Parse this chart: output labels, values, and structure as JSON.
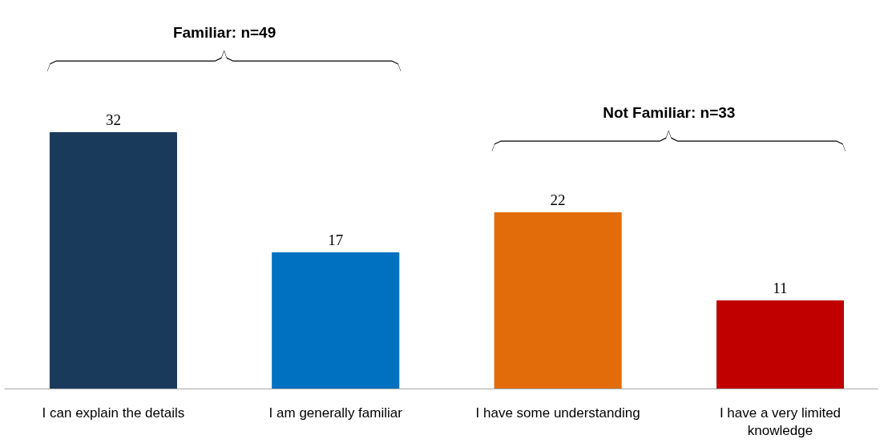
{
  "chart_data": {
    "type": "bar",
    "categories": [
      "I can explain the details",
      "I am generally familiar",
      "I have some understanding",
      "I have a very limited knowledge"
    ],
    "values": [
      32,
      17,
      22,
      11
    ],
    "colors": [
      "#1a3a5c",
      "#0070c0",
      "#e36c0a",
      "#c00000"
    ],
    "data_labels": true,
    "annotations": [
      "Familiar: n=49",
      "Not Familiar: n=33"
    ]
  }
}
